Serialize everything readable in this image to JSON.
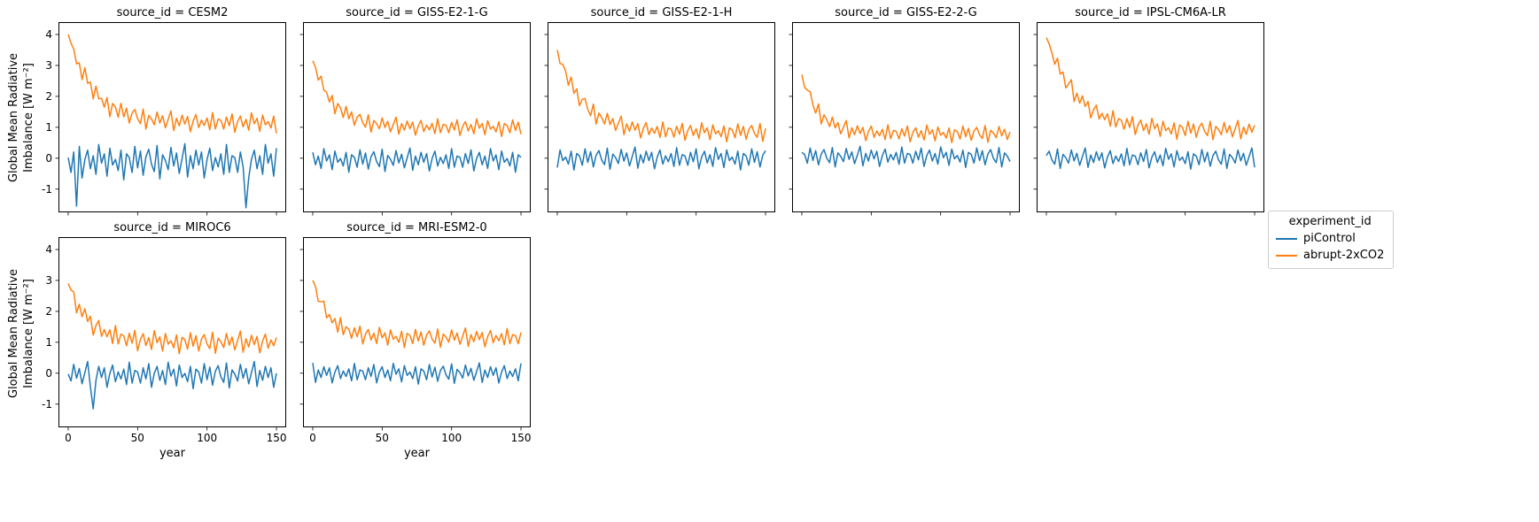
{
  "chart_data": {
    "type": "line",
    "xlabel": "year",
    "ylabel_lines": [
      "Global Mean Radiative",
      "Imbalance [W m⁻²]"
    ],
    "x_ticks": [
      0,
      50,
      100,
      150
    ],
    "y_ticks": [
      -1,
      0,
      1,
      2,
      3,
      4
    ],
    "xlim": [
      -7,
      157
    ],
    "ylim": [
      -1.75,
      4.4
    ],
    "x_start": 0,
    "x_end": 150,
    "x_step": 2,
    "legend": {
      "title": "experiment_id",
      "entries": [
        {
          "label": "piControl",
          "color": "#1f77b4"
        },
        {
          "label": "abrupt-2xCO2",
          "color": "#ff7f0e"
        }
      ]
    },
    "noise": [
      0.2,
      -0.6,
      0.5,
      -0.3,
      0.8,
      -0.9,
      0.1,
      0.6,
      -0.4,
      0.3,
      -0.7,
      0.9,
      -0.1,
      0.4,
      -0.8,
      0.7,
      -0.2,
      0.1,
      -0.5,
      0.6,
      -1.0,
      0.4,
      0.2,
      -0.6,
      0.8,
      -0.35,
      0.55,
      -0.75,
      0.25,
      0.65,
      -0.15,
      -0.55,
      0.85,
      -0.95,
      0.35,
      0.05,
      -0.45,
      0.75,
      -0.25,
      0.45,
      -0.65,
      0.15,
      0.95,
      -0.85,
      0.3,
      -0.4,
      0.6,
      -0.2,
      0.5,
      -0.9,
      0.1,
      0.7,
      -0.5,
      0.2,
      -0.3,
      0.4,
      -0.7,
      0.9,
      -0.6,
      0.3
    ],
    "facets": [
      {
        "title": "source_id = CESM2",
        "row": 0,
        "show_y": true,
        "show_x": false,
        "piControl": {
          "mean": -0.1,
          "amp": 0.6,
          "noise_offset": 0,
          "spikes": [
            {
              "x": 6,
              "y": -1.55
            },
            {
              "x": 128,
              "y": -1.6
            }
          ]
        },
        "abrupt": {
          "start": 4.0,
          "settle": 1.15,
          "tau": 18,
          "amp": 0.35,
          "noise_offset": 5
        }
      },
      {
        "title": "source_id = GISS-E2-1-G",
        "row": 0,
        "show_y": false,
        "show_x": false,
        "piControl": {
          "mean": -0.05,
          "amp": 0.4,
          "noise_offset": 7
        },
        "abrupt": {
          "start": 3.15,
          "settle": 1.0,
          "tau": 15,
          "amp": 0.3,
          "noise_offset": 12
        }
      },
      {
        "title": "source_id = GISS-E2-1-H",
        "row": 0,
        "show_y": false,
        "show_x": false,
        "piControl": {
          "mean": 0.0,
          "amp": 0.38,
          "noise_offset": 14
        },
        "abrupt": {
          "start": 3.5,
          "settle": 0.85,
          "tau": 18,
          "amp": 0.32,
          "noise_offset": 19
        }
      },
      {
        "title": "source_id = GISS-E2-2-G",
        "row": 0,
        "show_y": false,
        "show_x": false,
        "piControl": {
          "mean": 0.05,
          "amp": 0.35,
          "noise_offset": 21
        },
        "abrupt": {
          "start": 2.7,
          "settle": 0.8,
          "tau": 12,
          "amp": 0.3,
          "noise_offset": 26
        }
      },
      {
        "title": "source_id = IPSL-CM6A-LR",
        "row": 0,
        "show_y": false,
        "show_x": false,
        "piControl": {
          "mean": 0.0,
          "amp": 0.35,
          "noise_offset": 28
        },
        "abrupt": {
          "start": 3.9,
          "settle": 0.9,
          "tau": 22,
          "amp": 0.33,
          "noise_offset": 33
        }
      },
      {
        "title": "source_id = MIROC6",
        "row": 1,
        "show_y": true,
        "show_x": true,
        "piControl": {
          "mean": -0.05,
          "amp": 0.45,
          "noise_offset": 35,
          "spikes": [
            {
              "x": 18,
              "y": -1.15
            }
          ]
        },
        "abrupt": {
          "start": 2.9,
          "settle": 1.0,
          "tau": 15,
          "amp": 0.38,
          "noise_offset": 40
        }
      },
      {
        "title": "source_id = MRI-ESM2-0",
        "row": 1,
        "show_y": false,
        "show_x": true,
        "piControl": {
          "mean": 0.0,
          "amp": 0.35,
          "noise_offset": 42
        },
        "abrupt": {
          "start": 3.0,
          "settle": 1.15,
          "tau": 12,
          "amp": 0.33,
          "noise_offset": 47
        }
      }
    ]
  }
}
